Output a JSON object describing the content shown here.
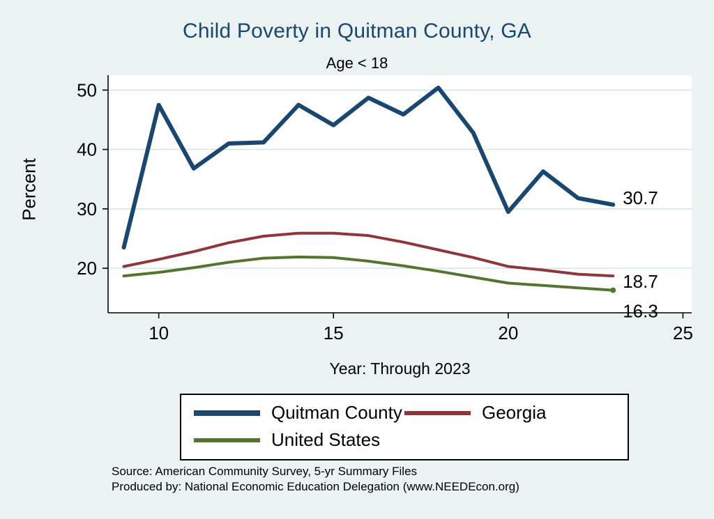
{
  "title": "Child Poverty in Quitman County, GA",
  "subtitle": "Age < 18",
  "axes": {
    "y_title": "Percent",
    "x_title": "Year: Through 2023"
  },
  "footer": {
    "source": "Source: American Community Survey, 5-yr Summary Files",
    "produced_by": "Produced by: National Economic Education Delegation (www.NEEDEcon.org)"
  },
  "colors": {
    "background": "#eaf2f3",
    "plot_background": "#ffffff",
    "grid": "#cde0e4",
    "axis": "#000000",
    "title": "#1a476f"
  },
  "chart_data": {
    "type": "line",
    "x": [
      9,
      10,
      11,
      12,
      13,
      14,
      15,
      16,
      17,
      18,
      19,
      20,
      21,
      22,
      23
    ],
    "series": [
      {
        "name": "Quitman County",
        "color": "#1a476f",
        "width": 6,
        "values": [
          23.5,
          47.5,
          36.8,
          41.0,
          41.2,
          47.5,
          44.1,
          48.7,
          45.9,
          50.4,
          42.8,
          29.5,
          36.3,
          31.8,
          30.7
        ],
        "end_label": "30.7",
        "label_offset_y": -10,
        "end_marker": false
      },
      {
        "name": "Georgia",
        "color": "#90353b",
        "width": 4,
        "values": [
          20.3,
          21.5,
          22.8,
          24.3,
          25.4,
          25.9,
          25.9,
          25.5,
          24.4,
          23.1,
          21.8,
          20.3,
          19.7,
          19.0,
          18.7
        ],
        "end_label": "18.7",
        "label_offset_y": 8,
        "end_marker": false
      },
      {
        "name": "United States",
        "color": "#55752f",
        "width": 4,
        "values": [
          18.7,
          19.3,
          20.1,
          21.0,
          21.7,
          21.9,
          21.8,
          21.2,
          20.4,
          19.5,
          18.5,
          17.5,
          17.1,
          16.7,
          16.3
        ],
        "end_label": "16.3",
        "label_offset_y": 30,
        "end_marker": true
      }
    ],
    "xticks": [
      10,
      15,
      20,
      25
    ],
    "yticks": [
      20,
      30,
      40,
      50
    ],
    "xlim": [
      8.55,
      25.25
    ],
    "ylim": [
      12.5,
      52.5
    ],
    "grid": true,
    "legend_position": "bottom",
    "xlabel": "Year: Through 2023",
    "ylabel": "Percent"
  }
}
